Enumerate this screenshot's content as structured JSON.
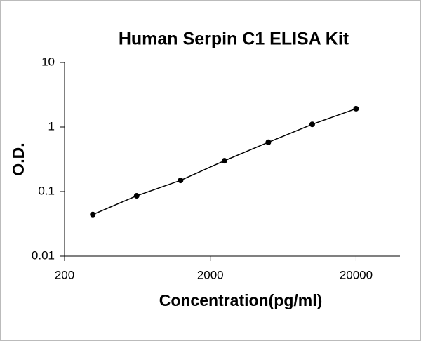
{
  "chart_data": {
    "type": "scatter",
    "title": "Human Serpin C1 ELISA Kit",
    "x_label": "Concentration(pg/ml)",
    "y_label": "O.D.",
    "x": [
      312.5,
      625,
      1250,
      2500,
      5000,
      10000,
      20000
    ],
    "values": [
      0.044,
      0.086,
      0.149,
      0.3,
      0.58,
      1.1,
      1.92
    ],
    "color": "#000000",
    "line": true,
    "xlog": true,
    "ylog": true,
    "xlim": [
      200,
      40000
    ],
    "ylim": [
      0.01,
      10
    ],
    "xticks": [
      200,
      2000,
      20000
    ],
    "yticks": [
      0.01,
      0.1,
      1,
      10
    ]
  }
}
